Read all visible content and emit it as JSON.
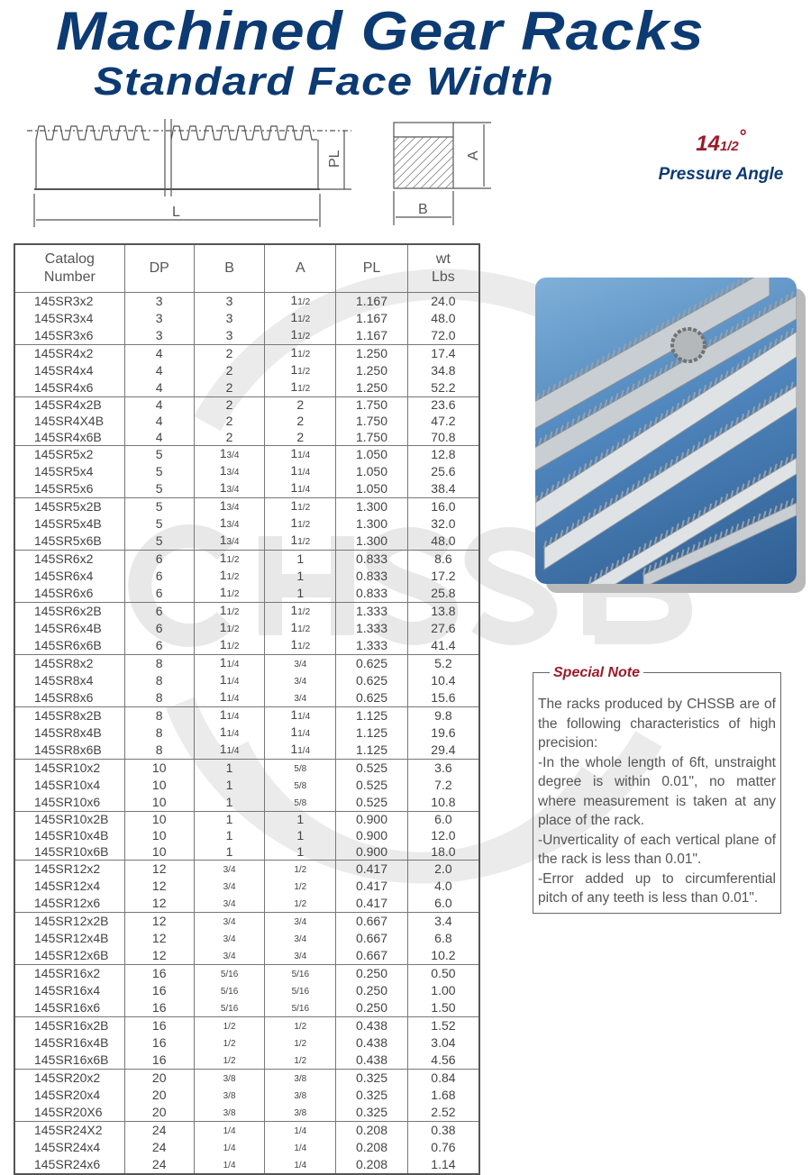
{
  "header": {
    "title": "Machined Gear Racks",
    "subtitle": "Standard Face Width"
  },
  "watermark": "CHSSB",
  "diagram": {
    "labels": {
      "pl": "PL",
      "l": "L",
      "a": "A",
      "b": "B"
    }
  },
  "pressure_angle": {
    "whole": "14",
    "fraction": "1/2",
    "degree": "°",
    "label": "Pressure Angle"
  },
  "colors": {
    "title": "#0c3a73",
    "accent": "#9b1c2a",
    "text": "#444444"
  },
  "table": {
    "headers": [
      "Catalog\nNumber",
      "DP",
      "B",
      "A",
      "PL",
      "wt\nLbs"
    ],
    "rows": [
      [
        "145SR3x2",
        "3",
        "3",
        "1 1/2",
        "1.167",
        "24.0"
      ],
      [
        "145SR3x4",
        "3",
        "3",
        "1 1/2",
        "1.167",
        "48.0"
      ],
      [
        "145SR3x6",
        "3",
        "3",
        "1 1/2",
        "1.167",
        "72.0"
      ],
      [
        "145SR4x2",
        "4",
        "2",
        "1 1/2",
        "1.250",
        "17.4"
      ],
      [
        "145SR4x4",
        "4",
        "2",
        "1 1/2",
        "1.250",
        "34.8"
      ],
      [
        "145SR4x6",
        "4",
        "2",
        "1 1/2",
        "1.250",
        "52.2"
      ],
      [
        "145SR4x2B",
        "4",
        "2",
        "2",
        "1.750",
        "23.6"
      ],
      [
        "145SR4X4B",
        "4",
        "2",
        "2",
        "1.750",
        "47.2"
      ],
      [
        "145SR4x6B",
        "4",
        "2",
        "2",
        "1.750",
        "70.8"
      ],
      [
        "145SR5x2",
        "5",
        "1 3/4",
        "1 1/4",
        "1.050",
        "12.8"
      ],
      [
        "145SR5x4",
        "5",
        "1 3/4",
        "1 1/4",
        "1.050",
        "25.6"
      ],
      [
        "145SR5x6",
        "5",
        "1 3/4",
        "1 1/4",
        "1.050",
        "38.4"
      ],
      [
        "145SR5x2B",
        "5",
        "1 3/4",
        "1 1/2",
        "1.300",
        "16.0"
      ],
      [
        "145SR5x4B",
        "5",
        "1 3/4",
        "1 1/2",
        "1.300",
        "32.0"
      ],
      [
        "145SR5x6B",
        "5",
        "1 3/4",
        "1 1/2",
        "1.300",
        "48.0"
      ],
      [
        "145SR6x2",
        "6",
        "1 1/2",
        "1",
        "0.833",
        "8.6"
      ],
      [
        "145SR6x4",
        "6",
        "1 1/2",
        "1",
        "0.833",
        "17.2"
      ],
      [
        "145SR6x6",
        "6",
        "1 1/2",
        "1",
        "0.833",
        "25.8"
      ],
      [
        "145SR6x2B",
        "6",
        "1 1/2",
        "1 1/2",
        "1.333",
        "13.8"
      ],
      [
        "145SR6x4B",
        "6",
        "1 1/2",
        "1 1/2",
        "1.333",
        "27.6"
      ],
      [
        "145SR6x6B",
        "6",
        "1 1/2",
        "1 1/2",
        "1.333",
        "41.4"
      ],
      [
        "145SR8x2",
        "8",
        "1 1/4",
        "3/4",
        "0.625",
        "5.2"
      ],
      [
        "145SR8x4",
        "8",
        "1 1/4",
        "3/4",
        "0.625",
        "10.4"
      ],
      [
        "145SR8x6",
        "8",
        "1 1/4",
        "3/4",
        "0.625",
        "15.6"
      ],
      [
        "145SR8x2B",
        "8",
        "1 1/4",
        "1 1/4",
        "1.125",
        "9.8"
      ],
      [
        "145SR8x4B",
        "8",
        "1 1/4",
        "1 1/4",
        "1.125",
        "19.6"
      ],
      [
        "145SR8x6B",
        "8",
        "1 1/4",
        "1 1/4",
        "1.125",
        "29.4"
      ],
      [
        "145SR10x2",
        "10",
        "1",
        "5/8",
        "0.525",
        "3.6"
      ],
      [
        "145SR10x4",
        "10",
        "1",
        "5/8",
        "0.525",
        "7.2"
      ],
      [
        "145SR10x6",
        "10",
        "1",
        "5/8",
        "0.525",
        "10.8"
      ],
      [
        "145SR10x2B",
        "10",
        "1",
        "1",
        "0.900",
        "6.0"
      ],
      [
        "145SR10x4B",
        "10",
        "1",
        "1",
        "0.900",
        "12.0"
      ],
      [
        "145SR10x6B",
        "10",
        "1",
        "1",
        "0.900",
        "18.0"
      ],
      [
        "145SR12x2",
        "12",
        "3/4",
        "1/2",
        "0.417",
        "2.0"
      ],
      [
        "145SR12x4",
        "12",
        "3/4",
        "1/2",
        "0.417",
        "4.0"
      ],
      [
        "145SR12x6",
        "12",
        "3/4",
        "1/2",
        "0.417",
        "6.0"
      ],
      [
        "145SR12x2B",
        "12",
        "3/4",
        "3/4",
        "0.667",
        "3.4"
      ],
      [
        "145SR12x4B",
        "12",
        "3/4",
        "3/4",
        "0.667",
        "6.8"
      ],
      [
        "145SR12x6B",
        "12",
        "3/4",
        "3/4",
        "0.667",
        "10.2"
      ],
      [
        "145SR16x2",
        "16",
        "5/16",
        "5/16",
        "0.250",
        "0.50"
      ],
      [
        "145SR16x4",
        "16",
        "5/16",
        "5/16",
        "0.250",
        "1.00"
      ],
      [
        "145SR16x6",
        "16",
        "5/16",
        "5/16",
        "0.250",
        "1.50"
      ],
      [
        "145SR16x2B",
        "16",
        "1/2",
        "1/2",
        "0.438",
        "1.52"
      ],
      [
        "145SR16x4B",
        "16",
        "1/2",
        "1/2",
        "0.438",
        "3.04"
      ],
      [
        "145SR16x6B",
        "16",
        "1/2",
        "1/2",
        "0.438",
        "4.56"
      ],
      [
        "145SR20x2",
        "20",
        "3/8",
        "3/8",
        "0.325",
        "0.84"
      ],
      [
        "145SR20x4",
        "20",
        "3/8",
        "3/8",
        "0.325",
        "1.68"
      ],
      [
        "145SR20X6",
        "20",
        "3/8",
        "3/8",
        "0.325",
        "2.52"
      ],
      [
        "145SR24X2",
        "24",
        "1/4",
        "1/4",
        "0.208",
        "0.38"
      ],
      [
        "145SR24x4",
        "24",
        "1/4",
        "1/4",
        "0.208",
        "0.76"
      ],
      [
        "145SR24x6",
        "24",
        "1/4",
        "1/4",
        "0.208",
        "1.14"
      ]
    ]
  },
  "special_note": {
    "title": "Special Note",
    "paragraphs": [
      "The racks produced by CHSSB are of the following characteristics of high precision:",
      "-In the whole length of 6ft, unstraight degree is within 0.01\", no matter where measurement is taken at any place of the rack.",
      "-Unverticality of each vertical plane of the rack is less than 0.01\".",
      "-Error added up to circumferential pitch of any teeth is less than 0.01\"."
    ]
  }
}
